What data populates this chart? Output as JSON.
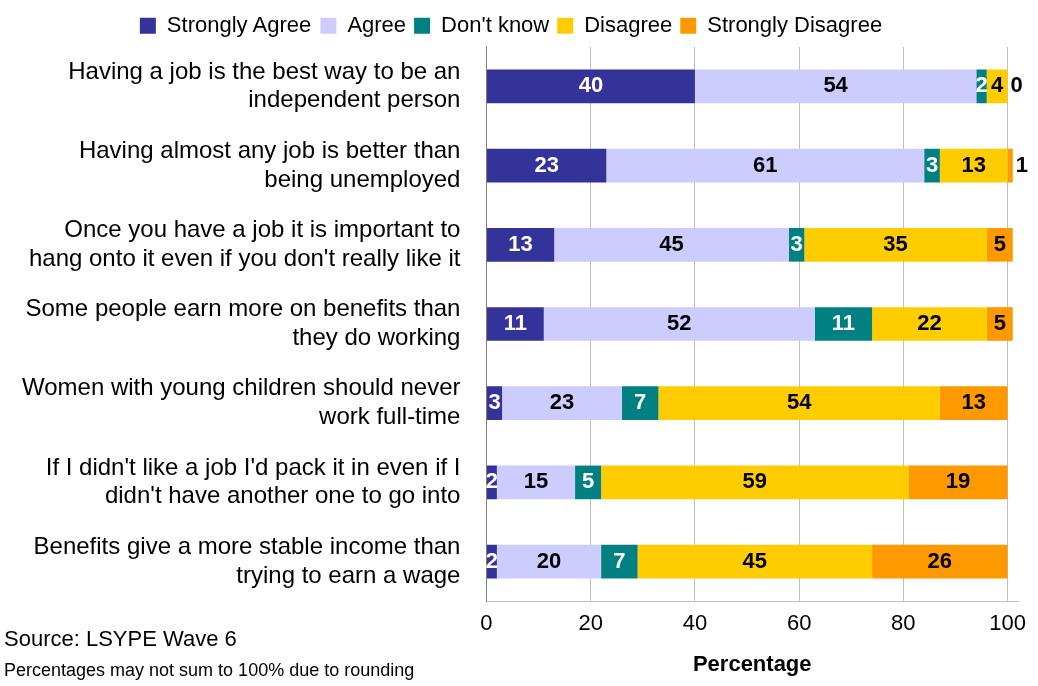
{
  "chart_data": {
    "type": "bar",
    "orientation": "horizontal",
    "stacked": true,
    "categories": [
      "Having a job is the best way to be an independent person",
      "Having almost any job is better than being unemployed",
      "Once you have a job it is important to hang onto it even if you don't really like it",
      "Some people earn more on benefits than they do working",
      "Women with young children should never work full-time",
      "If I didn't like a job I'd pack it in even if I didn't have another one to go into",
      "Benefits give a more stable income than trying to earn a wage"
    ],
    "series": [
      {
        "name": "Strongly Agree",
        "color": "#333399",
        "values": [
          40,
          23,
          13,
          11,
          3,
          2,
          2
        ]
      },
      {
        "name": "Agree",
        "color": "#ccccff",
        "values": [
          54,
          61,
          45,
          52,
          23,
          15,
          20
        ]
      },
      {
        "name": "Don't know",
        "color": "#008080",
        "values": [
          2,
          3,
          3,
          11,
          7,
          5,
          7
        ]
      },
      {
        "name": "Disagree",
        "color": "#ffcc00",
        "values": [
          4,
          13,
          35,
          22,
          54,
          59,
          45
        ]
      },
      {
        "name": "Strongly Disagree",
        "color": "#ff9900",
        "values": [
          0,
          1,
          5,
          5,
          13,
          19,
          26
        ]
      }
    ],
    "xlim": [
      0,
      102
    ],
    "xticks": [
      0,
      20,
      40,
      60,
      80,
      100
    ],
    "xlabel": "Percentage",
    "grid": "x",
    "legend": "top",
    "data_labels": true,
    "annotations": [
      "Source: LSYPE Wave 6",
      "Percentages may not sum to 100% due to rounding"
    ]
  }
}
